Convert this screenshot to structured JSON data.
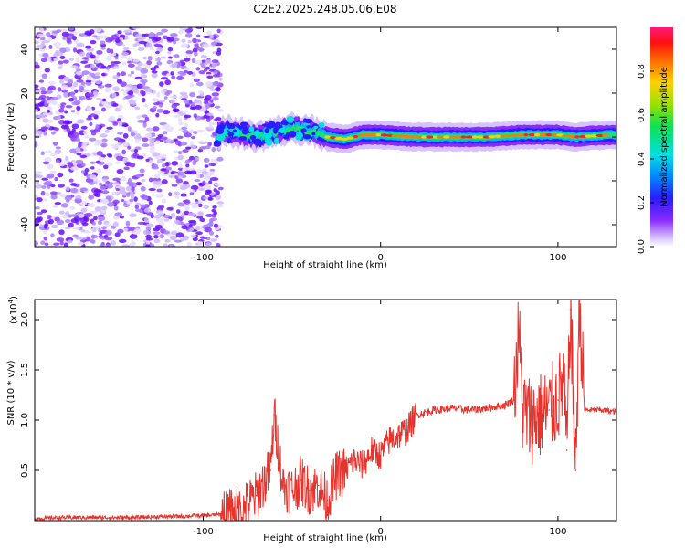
{
  "title": "C2E2.2025.248.05.06.E08",
  "chart_data": [
    {
      "type": "heatmap",
      "xlabel": "Height of straight line (km)",
      "ylabel": "Frequency (Hz)",
      "xlim": [
        -195,
        133
      ],
      "ylim": [
        -50,
        50
      ],
      "xticks": [
        -100,
        0,
        100
      ],
      "yticks": [
        -40,
        -20,
        0,
        20,
        40
      ],
      "xtick_labels": [
        "-100",
        "0",
        "100"
      ],
      "ytick_labels": [
        "-40",
        "-20",
        "0",
        "20",
        "40"
      ],
      "colorbar": {
        "label": "Normalized spectral amplitude",
        "range": [
          0,
          1
        ],
        "ticks": [
          0.0,
          0.2,
          0.4,
          0.6,
          0.8
        ],
        "tick_labels": [
          "0.0",
          "0.2",
          "0.4",
          "0.6",
          "0.8"
        ]
      },
      "ridge_points": [
        {
          "x": -90,
          "y": 3
        },
        {
          "x": -80,
          "y": 2
        },
        {
          "x": -70,
          "y": 0
        },
        {
          "x": -60,
          "y": 2
        },
        {
          "x": -50,
          "y": 4
        },
        {
          "x": -40,
          "y": 3
        },
        {
          "x": -30,
          "y": 0
        },
        {
          "x": -20,
          "y": -1
        },
        {
          "x": -10,
          "y": 1
        },
        {
          "x": 0,
          "y": 1
        },
        {
          "x": 20,
          "y": 0
        },
        {
          "x": 40,
          "y": 0
        },
        {
          "x": 60,
          "y": 0
        },
        {
          "x": 80,
          "y": 1
        },
        {
          "x": 100,
          "y": 1
        },
        {
          "x": 110,
          "y": 0
        },
        {
          "x": 130,
          "y": 1
        }
      ]
    },
    {
      "type": "line",
      "xlabel": "Height of straight line (km)",
      "ylabel": "SNR (10 * v/v)",
      "y_multiplier": "(x10",
      "y_multiplier_exp": "4",
      "xlim": [
        -195,
        133
      ],
      "ylim": [
        0,
        2.2
      ],
      "xticks": [
        -100,
        0,
        100
      ],
      "yticks": [
        0.5,
        1.0,
        1.5,
        2.0
      ],
      "xtick_labels": [
        "-100",
        "0",
        "100"
      ],
      "ytick_labels": [
        "0.5",
        "1.0",
        "1.5",
        "2.0"
      ],
      "color": "#e8322c",
      "series": [
        {
          "name": "SNR",
          "x": [
            -195,
            -180,
            -160,
            -140,
            -120,
            -100,
            -90,
            -80,
            -70,
            -62,
            -60,
            -55,
            -50,
            -45,
            -40,
            -35,
            -30,
            -25,
            -20,
            -15,
            -10,
            -5,
            0,
            5,
            10,
            15,
            20,
            30,
            40,
            50,
            60,
            70,
            75,
            78,
            80,
            85,
            90,
            95,
            100,
            103,
            105,
            107,
            110,
            112,
            115,
            120,
            125,
            133
          ],
          "y": [
            0.02,
            0.03,
            0.03,
            0.03,
            0.04,
            0.05,
            0.06,
            0.08,
            0.25,
            0.5,
            1.05,
            0.35,
            0.3,
            0.4,
            0.3,
            0.35,
            0.2,
            0.45,
            0.5,
            0.6,
            0.55,
            0.7,
            0.65,
            0.8,
            0.85,
            0.9,
            1.05,
            1.1,
            1.12,
            1.1,
            1.12,
            1.15,
            1.2,
            1.9,
            1.1,
            1.0,
            1.05,
            1.1,
            1.2,
            1.4,
            0.7,
            2.1,
            0.5,
            2.2,
            1.1,
            1.1,
            1.1,
            1.08
          ]
        }
      ]
    }
  ]
}
